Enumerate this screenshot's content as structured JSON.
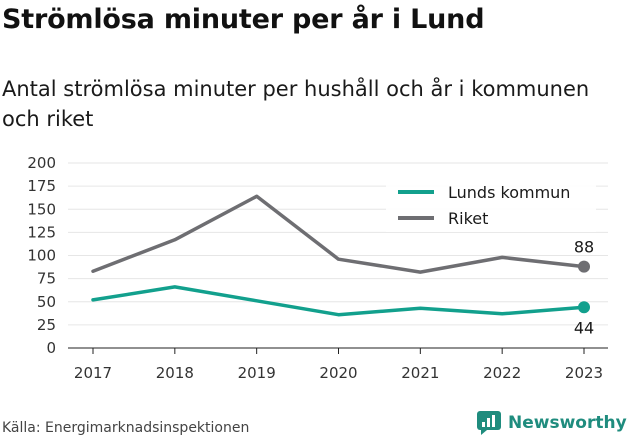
{
  "title": "Strömlösa minuter per år i Lund",
  "subtitle": "Antal strömlösa minuter per hushåll och år i kommunen och riket",
  "source": "Källa: Energimarknadsinspektionen",
  "brand": {
    "name": "Newsworthy",
    "icon": "newsworthy-logo-icon",
    "color": "#1f8c7e"
  },
  "chart_data": {
    "type": "line",
    "x": [
      "2017",
      "2018",
      "2019",
      "2020",
      "2021",
      "2022",
      "2023"
    ],
    "ylim": [
      0,
      200
    ],
    "yticks": [
      0,
      25,
      50,
      75,
      100,
      125,
      150,
      175,
      200
    ],
    "grid": true,
    "legend_position": "top-right",
    "series": [
      {
        "name": "Lunds kommun",
        "color": "#12a08d",
        "values": [
          52,
          66,
          51,
          36,
          43,
          37,
          44
        ]
      },
      {
        "name": "Riket",
        "color": "#6e6e72",
        "values": [
          83,
          117,
          164,
          96,
          82,
          98,
          88
        ]
      }
    ],
    "end_labels": [
      {
        "series": "Riket",
        "text": "88"
      },
      {
        "series": "Lunds kommun",
        "text": "44"
      }
    ]
  }
}
